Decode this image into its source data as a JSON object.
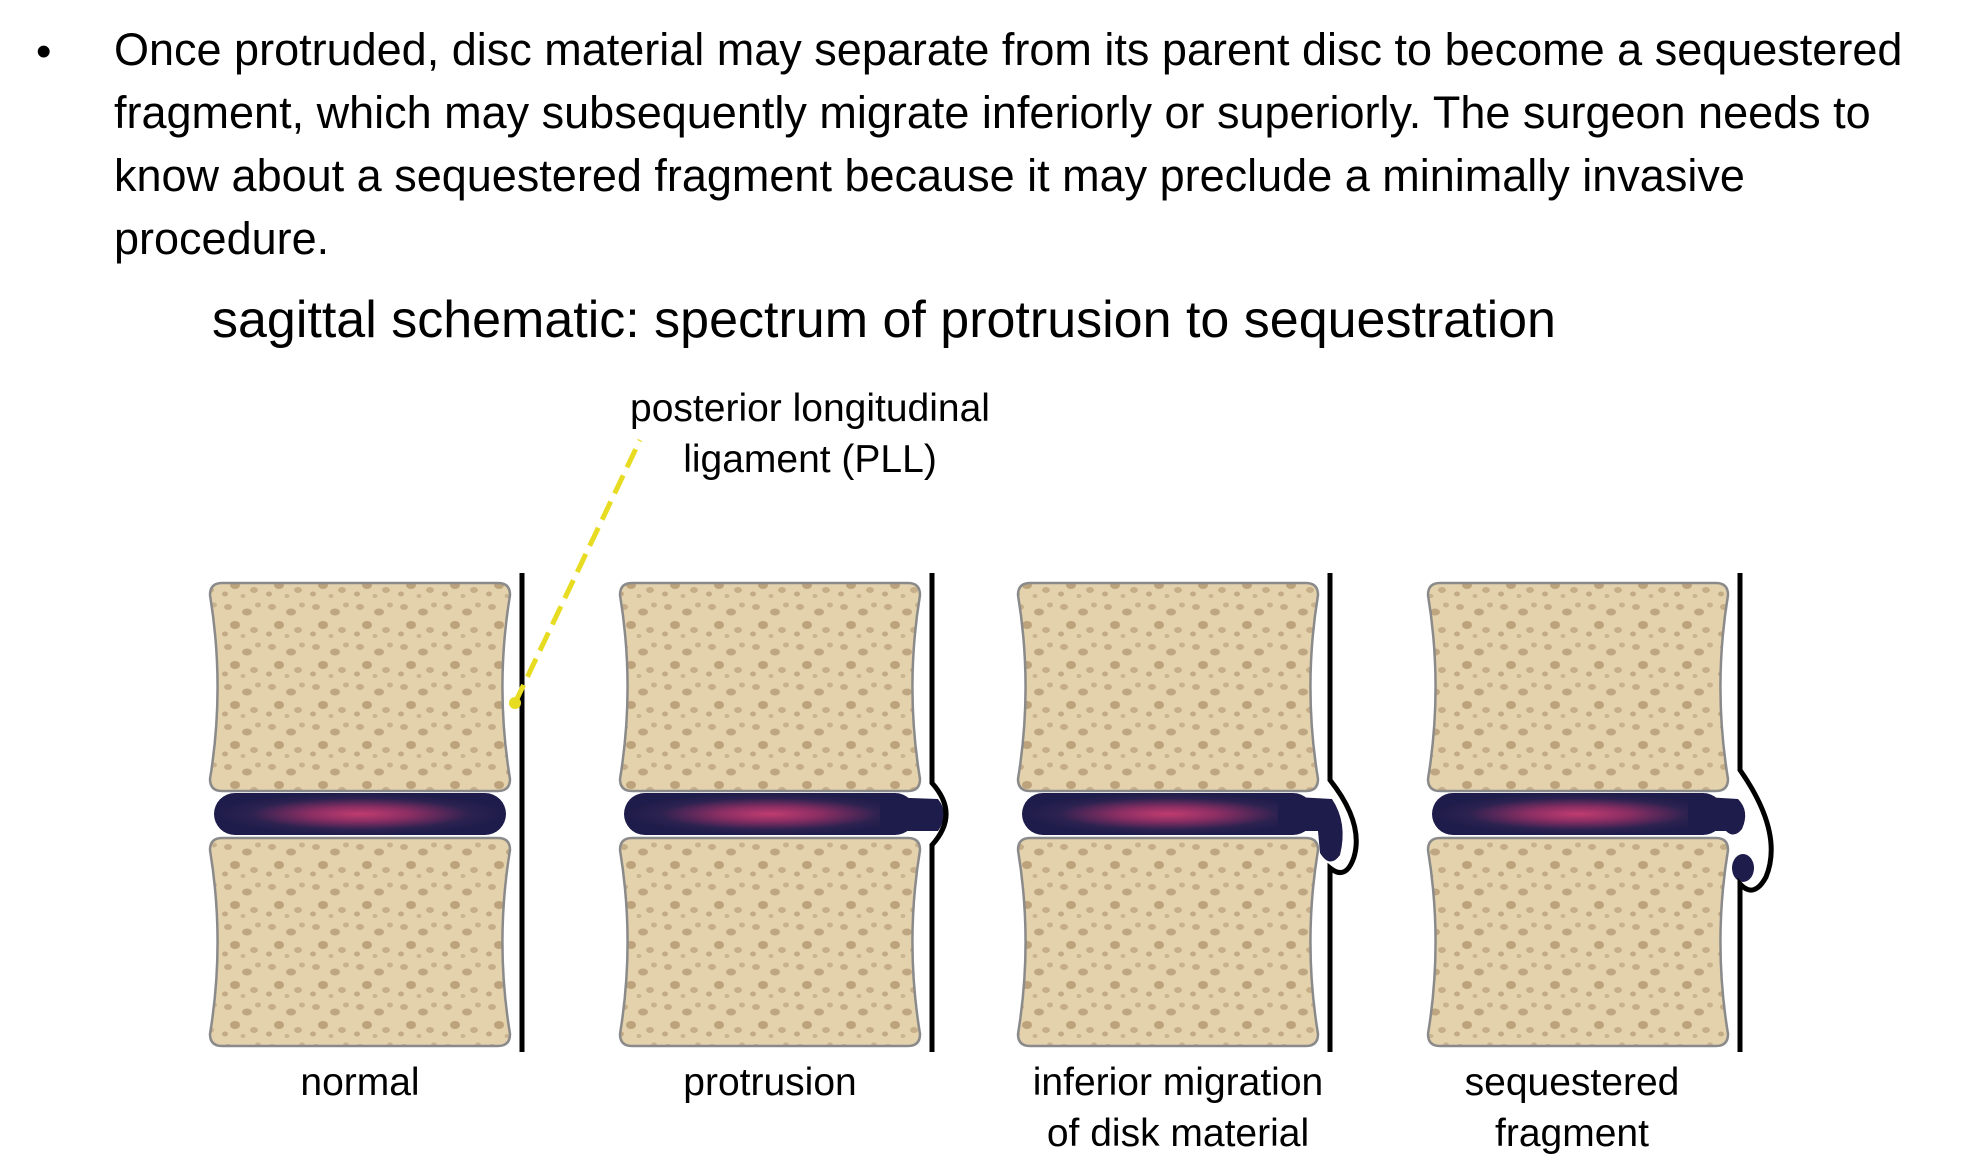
{
  "bullet": {
    "marker": "•",
    "text": "Once protruded, disc material may separate from its parent disc to become a sequestered fragment, which may subsequently migrate inferiorly or superiorly. The surgeon needs to know about a sequestered fragment because it may preclude a minimally invasive procedure."
  },
  "diagram": {
    "title": "sagittal schematic: spectrum of protrusion to sequestration",
    "pll_label_line1": "posterior longitudinal",
    "pll_label_line2": "ligament (PLL)",
    "panels": [
      {
        "label_line1": "normal",
        "label_line2": ""
      },
      {
        "label_line1": "protrusion",
        "label_line2": ""
      },
      {
        "label_line1": "inferior migration",
        "label_line2": "of disk material"
      },
      {
        "label_line1": "sequestered",
        "label_line2": "fragment"
      }
    ],
    "colors": {
      "bone_fill": "#e4d2ad",
      "bone_outline": "#8a8a8a",
      "bone_pore": "#b9a37d",
      "disc_outer": "#1e1c4a",
      "disc_inner": "#b03a6a",
      "ligament": "#000000",
      "pointer": "#e8dc22"
    }
  }
}
